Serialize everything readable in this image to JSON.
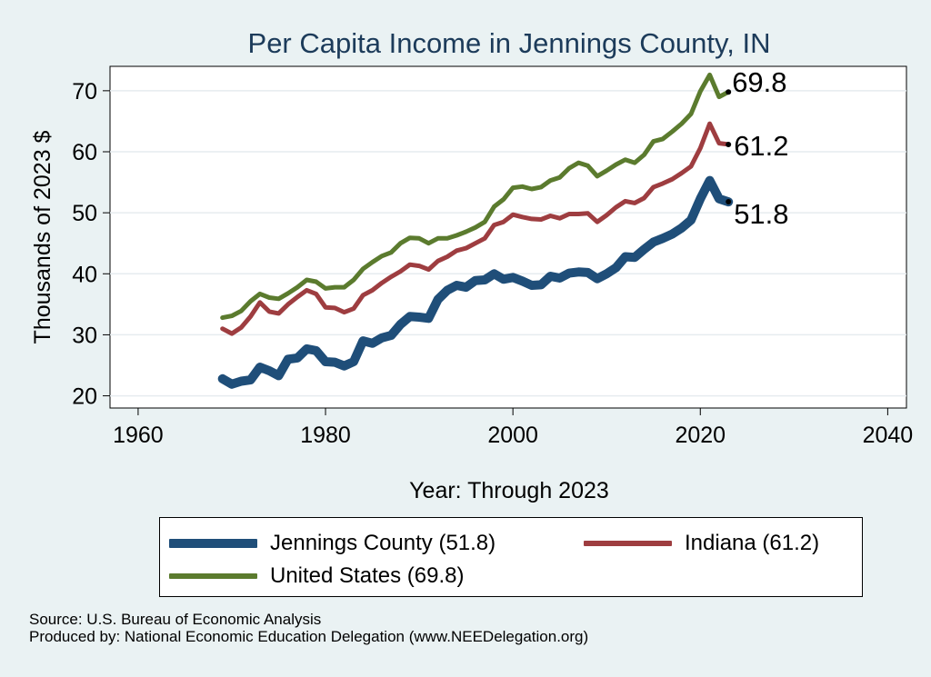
{
  "chart_data": {
    "type": "line",
    "title": "Per Capita Income in Jennings County, IN",
    "xlabel": "Year: Through 2023",
    "ylabel": "Thousands of 2023 $",
    "xlim": [
      1957,
      2042
    ],
    "ylim": [
      18,
      74
    ],
    "xticks": [
      1960,
      1980,
      2000,
      2020,
      2040
    ],
    "yticks": [
      20,
      30,
      40,
      50,
      60,
      70
    ],
    "grid": true,
    "legend_position": "bottom",
    "x": [
      1969,
      1970,
      1971,
      1972,
      1973,
      1974,
      1975,
      1976,
      1977,
      1978,
      1979,
      1980,
      1981,
      1982,
      1983,
      1984,
      1985,
      1986,
      1987,
      1988,
      1989,
      1990,
      1991,
      1992,
      1993,
      1994,
      1995,
      1996,
      1997,
      1998,
      1999,
      2000,
      2001,
      2002,
      2003,
      2004,
      2005,
      2006,
      2007,
      2008,
      2009,
      2010,
      2011,
      2012,
      2013,
      2014,
      2015,
      2016,
      2017,
      2018,
      2019,
      2020,
      2021,
      2022,
      2023
    ],
    "series": [
      {
        "name": "Jennings County (51.8)",
        "color": "#1f4e79",
        "values": [
          22.8,
          21.9,
          22.4,
          22.6,
          24.7,
          24.1,
          23.3,
          26.0,
          26.2,
          27.7,
          27.4,
          25.6,
          25.5,
          24.9,
          25.6,
          29.0,
          28.6,
          29.5,
          29.9,
          31.7,
          33.0,
          32.9,
          32.7,
          35.8,
          37.3,
          38.1,
          37.8,
          38.9,
          39.0,
          40.0,
          39.1,
          39.4,
          38.8,
          38.1,
          38.2,
          39.6,
          39.3,
          40.1,
          40.3,
          40.2,
          39.2,
          40.0,
          41.0,
          42.8,
          42.7,
          44.0,
          45.2,
          45.8,
          46.5,
          47.5,
          48.8,
          52.3,
          55.3,
          52.3,
          51.8
        ]
      },
      {
        "name": "Indiana (61.2)",
        "color": "#9e3d40",
        "values": [
          31.0,
          30.2,
          31.2,
          33.0,
          35.3,
          33.8,
          33.5,
          35.0,
          36.2,
          37.3,
          36.7,
          34.5,
          34.4,
          33.7,
          34.3,
          36.5,
          37.3,
          38.5,
          39.5,
          40.4,
          41.5,
          41.3,
          40.7,
          42.1,
          42.8,
          43.8,
          44.2,
          45.0,
          45.8,
          48.0,
          48.5,
          49.7,
          49.3,
          49.0,
          48.9,
          49.5,
          49.1,
          49.8,
          49.8,
          49.9,
          48.5,
          49.6,
          50.9,
          51.9,
          51.6,
          52.4,
          54.2,
          54.8,
          55.5,
          56.5,
          57.6,
          60.6,
          64.6,
          61.4,
          61.2
        ]
      },
      {
        "name": "United States (69.8)",
        "color": "#5b7b2e",
        "values": [
          32.8,
          33.1,
          33.9,
          35.5,
          36.7,
          36.1,
          35.9,
          36.8,
          37.8,
          39.0,
          38.7,
          37.6,
          37.8,
          37.8,
          39.0,
          40.8,
          41.9,
          42.9,
          43.5,
          45.0,
          45.9,
          45.8,
          45.0,
          45.8,
          45.8,
          46.3,
          46.9,
          47.6,
          48.5,
          51.0,
          52.2,
          54.1,
          54.3,
          53.9,
          54.2,
          55.3,
          55.8,
          57.3,
          58.2,
          57.7,
          56.0,
          56.9,
          57.9,
          58.7,
          58.2,
          59.5,
          61.7,
          62.1,
          63.3,
          64.6,
          66.2,
          69.9,
          72.6,
          69.0,
          69.8
        ]
      }
    ],
    "end_labels": [
      "51.8",
      "61.2",
      "69.8"
    ]
  },
  "footer": {
    "source": "Source: U.S. Bureau of Economic Analysis",
    "produced": "Produced by: National Economic Education Delegation (www.NEEDelegation.org)"
  }
}
